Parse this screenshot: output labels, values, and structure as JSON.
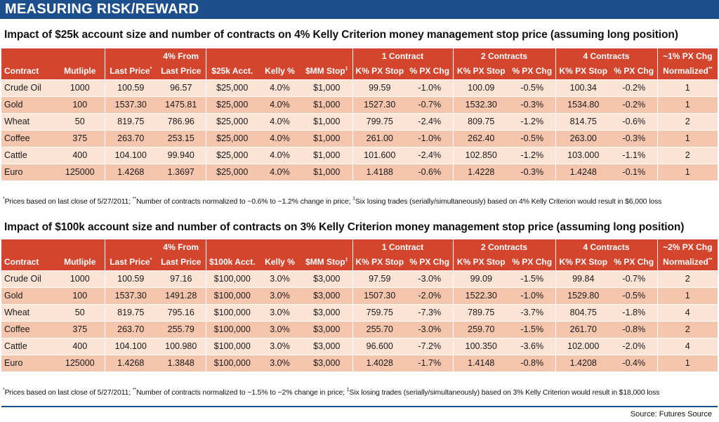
{
  "banner_title": "MEASURING RISK/REWARD",
  "colors": {
    "banner": "#1c4f8c",
    "header": "#d4452e",
    "row_light": "#fbe3d6",
    "row_dark": "#f6c5ad"
  },
  "tables": [
    {
      "title": "Impact of $25k account size and number of contracts on 4% Kelly Criterion money management stop price (assuming long position)",
      "group_headers": {
        "from_last_line1": "4% From",
        "one_contract": "1 Contract",
        "two_contracts": "2 Contracts",
        "four_contracts": "4 Contracts",
        "normalized_line1": "~1% PX Chg"
      },
      "columns": [
        "Contract",
        "Mutliple",
        "Last Price",
        "Last Price",
        "$25k Acct.",
        "Kelly %",
        "$MM Stop",
        "K% PX Stop",
        "% PX Chg",
        "K% PX Stop",
        "% PX Chg",
        "K% PX Stop",
        "% PX Chg",
        "Normalized"
      ],
      "marks": {
        "last_price": "*",
        "mm_stop": "‡",
        "normalized": "**"
      },
      "rows": [
        [
          "Crude Oil",
          "1000",
          "100.59",
          "96.57",
          "$25,000",
          "4.0%",
          "$1,000",
          "99.59",
          "-1.0%",
          "100.09",
          "-0.5%",
          "100.34",
          "-0.2%",
          "1"
        ],
        [
          "Gold",
          "100",
          "1537.30",
          "1475.81",
          "$25,000",
          "4.0%",
          "$1,000",
          "1527.30",
          "-0.7%",
          "1532.30",
          "-0.3%",
          "1534.80",
          "-0.2%",
          "1"
        ],
        [
          "Wheat",
          "50",
          "819.75",
          "786.96",
          "$25,000",
          "4.0%",
          "$1,000",
          "799.75",
          "-2.4%",
          "809.75",
          "-1.2%",
          "814.75",
          "-0.6%",
          "2"
        ],
        [
          "Coffee",
          "375",
          "263.70",
          "253.15",
          "$25,000",
          "4.0%",
          "$1,000",
          "261.00",
          "-1.0%",
          "262.40",
          "-0.5%",
          "263.00",
          "-0.3%",
          "1"
        ],
        [
          "Cattle",
          "400",
          "104.100",
          "99.940",
          "$25,000",
          "4.0%",
          "$1,000",
          "101.600",
          "-2.4%",
          "102.850",
          "-1.2%",
          "103.000",
          "-1.1%",
          "2"
        ],
        [
          "Euro",
          "125000",
          "1.4268",
          "1.3697",
          "$25,000",
          "4.0%",
          "$1,000",
          "1.4188",
          "-0.6%",
          "1.4228",
          "-0.3%",
          "1.4248",
          "-0.1%",
          "1"
        ]
      ],
      "footnote": {
        "m1": "*",
        "t1": "Prices based on last close of  5/27/2011;  ",
        "m2": "**",
        "t2": "Number of contracts normalized to ~0.6% to ~1.2% change in price;  ",
        "m3": "‡",
        "t3": "Six losing trades (serially/simultaneously) based on 4% Kelly Criterion would result in $6,000 loss"
      }
    },
    {
      "title": "Impact of $100k account size and number of contracts on 3% Kelly Criterion money management stop price (assuming long position)",
      "group_headers": {
        "from_last_line1": "4% From",
        "one_contract": "1 Contract",
        "two_contracts": "2 Contracts",
        "four_contracts": "4 Contracts",
        "normalized_line1": "~2% PX Chg"
      },
      "columns": [
        "Contract",
        "Mutliple",
        "Last Price",
        "Last Price",
        "$100k Acct.",
        "Kelly %",
        "$MM Stop",
        "K% PX Stop",
        "% PX Chg",
        "K% PX Stop",
        "% PX Chg",
        "K% PX Stop",
        "% PX Chg",
        "Normalized"
      ],
      "marks": {
        "last_price": "*",
        "mm_stop": "‡",
        "normalized": "**"
      },
      "rows": [
        [
          "Crude Oil",
          "1000",
          "100.59",
          "97.16",
          "$100,000",
          "3.0%",
          "$3,000",
          "97.59",
          "-3.0%",
          "99.09",
          "-1.5%",
          "99.84",
          "-0.7%",
          "2"
        ],
        [
          "Gold",
          "100",
          "1537.30",
          "1491.28",
          "$100,000",
          "3.0%",
          "$3,000",
          "1507.30",
          "-2.0%",
          "1522.30",
          "-1.0%",
          "1529.80",
          "-0.5%",
          "1"
        ],
        [
          "Wheat",
          "50",
          "819.75",
          "795.16",
          "$100,000",
          "3.0%",
          "$3,000",
          "759.75",
          "-7.3%",
          "789.75",
          "-3.7%",
          "804.75",
          "-1.8%",
          "4"
        ],
        [
          "Coffee",
          "375",
          "263.70",
          "255.79",
          "$100,000",
          "3.0%",
          "$3,000",
          "255.70",
          "-3.0%",
          "259.70",
          "-1.5%",
          "261.70",
          "-0.8%",
          "2"
        ],
        [
          "Cattle",
          "400",
          "104.100",
          "100.980",
          "$100,000",
          "3.0%",
          "$3,000",
          "96.600",
          "-7.2%",
          "100.350",
          "-3.6%",
          "102.000",
          "-2.0%",
          "4"
        ],
        [
          "Euro",
          "125000",
          "1.4268",
          "1.3848",
          "$100,000",
          "3.0%",
          "$3,000",
          "1.4028",
          "-1.7%",
          "1.4148",
          "-0.8%",
          "1.4208",
          "-0.4%",
          "1"
        ]
      ],
      "footnote": {
        "m1": "*",
        "t1": "Prices based on last close of  5/27/2011;  ",
        "m2": "**",
        "t2": "Number of contracts normalized to ~1.5% to ~2% change in price;  ",
        "m3": "‡",
        "t3": "Six losing trades (serially/simultaneously) based on 3% Kelly Criterion would result in $18,000 loss"
      }
    }
  ],
  "source": "Source: Futures Source"
}
